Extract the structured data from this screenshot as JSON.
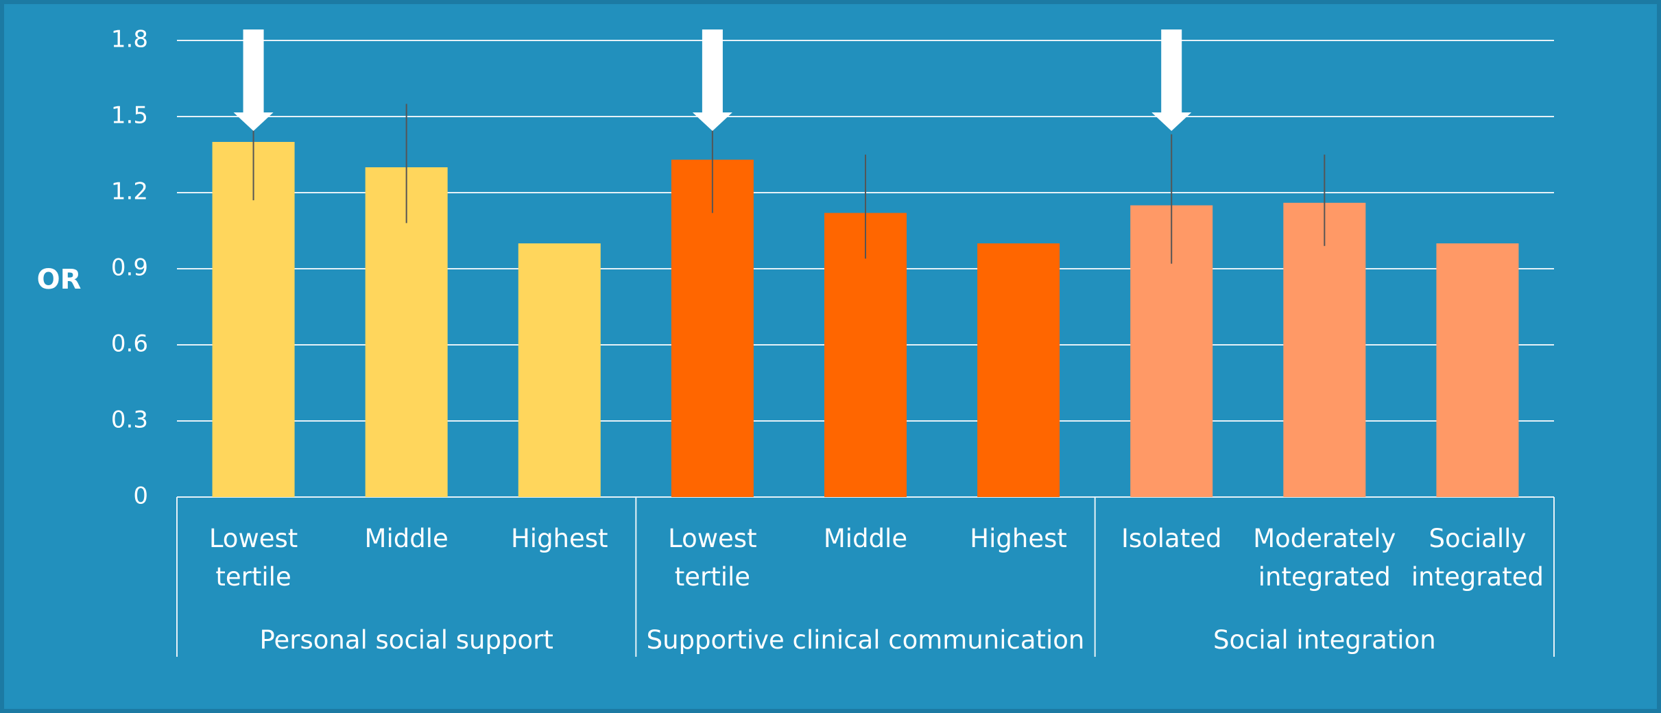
{
  "chart_data": {
    "type": "bar",
    "y_label": "OR",
    "ylim": [
      0,
      1.8
    ],
    "yticks": [
      0,
      0.3,
      0.6,
      0.9,
      1.2,
      1.5,
      1.8
    ],
    "grid": true,
    "groups": [
      {
        "name": "Personal social support",
        "color": "#ffd65c",
        "categories": [
          "Lowest tertile",
          "Middle",
          "Highest"
        ],
        "values": [
          1.4,
          1.3,
          1.0
        ],
        "ci_low": [
          1.17,
          1.08,
          null
        ],
        "ci_high": [
          1.65,
          1.55,
          null
        ]
      },
      {
        "name": "Supportive clinical communication",
        "color": "#ff6600",
        "categories": [
          "Lowest tertile",
          "Middle",
          "Highest"
        ],
        "values": [
          1.33,
          1.12,
          1.0
        ],
        "ci_low": [
          1.12,
          0.94,
          null
        ],
        "ci_high": [
          1.58,
          1.35,
          null
        ]
      },
      {
        "name": "Social integration",
        "color": "#ff9966",
        "categories": [
          "Isolated",
          "Moderately integrated",
          "Socially integrated"
        ],
        "values": [
          1.15,
          1.16,
          1.0
        ],
        "ci_low": [
          0.92,
          0.99,
          null
        ],
        "ci_high": [
          1.43,
          1.35,
          null
        ]
      }
    ]
  }
}
